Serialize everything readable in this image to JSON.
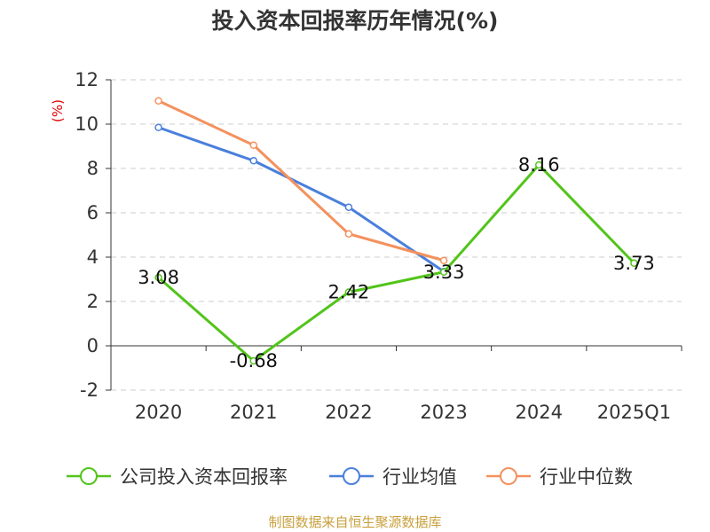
{
  "chart_data": {
    "type": "line",
    "title": "投入资本回报率历年情况(%)",
    "ylabel": "(%)",
    "xlabel": "",
    "categories": [
      "2020",
      "2021",
      "2022",
      "2023",
      "2024",
      "2025Q1"
    ],
    "ylim": [
      -2,
      12
    ],
    "yticks": [
      -2,
      0,
      2,
      4,
      6,
      8,
      10,
      12
    ],
    "grid": true,
    "legend_position": "bottom",
    "series": [
      {
        "name": "公司投入资本回报率",
        "color": "#52c41a",
        "values": [
          3.08,
          -0.68,
          2.42,
          3.33,
          8.16,
          3.73
        ],
        "labels": [
          "3.08",
          "-0.68",
          "2.42",
          "3.33",
          "8.16",
          "3.73"
        ]
      },
      {
        "name": "行业均值",
        "color": "#4a7fdc",
        "values": [
          9.85,
          8.35,
          6.25,
          3.35,
          null,
          null
        ]
      },
      {
        "name": "行业中位数",
        "color": "#f4915d",
        "values": [
          11.05,
          9.05,
          5.05,
          3.85,
          null,
          null
        ]
      }
    ]
  },
  "source_text": "制图数据来自恒生聚源数据库"
}
